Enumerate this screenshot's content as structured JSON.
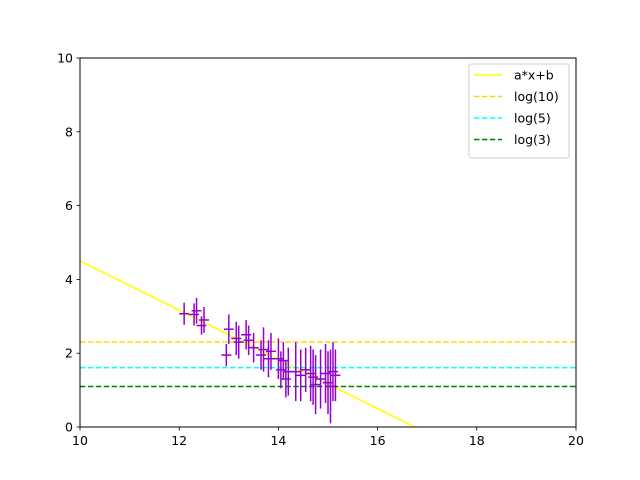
{
  "chart_data": {
    "type": "scatter",
    "title": "",
    "xlabel": "",
    "ylabel": "",
    "xlim": [
      10,
      20
    ],
    "ylim": [
      0,
      10
    ],
    "xticks": [
      "10",
      "12",
      "14",
      "16",
      "18",
      "20"
    ],
    "yticks": [
      "0",
      "2",
      "4",
      "6",
      "8",
      "10"
    ],
    "grid": false,
    "legend_position": "top-right",
    "series": [
      {
        "name": "a*x+b",
        "kind": "line",
        "color": "#ffff00",
        "style": "solid",
        "x": [
          10,
          16.75
        ],
        "y": [
          4.5,
          0
        ]
      },
      {
        "name": "log(10)",
        "kind": "hline",
        "color": "#ffd700",
        "style": "dashed",
        "y": 2.3026
      },
      {
        "name": "log(5)",
        "kind": "hline",
        "color": "#00ffff",
        "style": "dashed",
        "y": 1.6094
      },
      {
        "name": "log(3)",
        "kind": "hline",
        "color": "#008000",
        "style": "dashed",
        "y": 1.0986
      }
    ],
    "errorbar_series": {
      "color": "#9400d3",
      "points": [
        {
          "x": 12.1,
          "y": 3.07,
          "err": 0.3
        },
        {
          "x": 12.3,
          "y": 3.05,
          "err": 0.3
        },
        {
          "x": 12.35,
          "y": 3.15,
          "err": 0.35
        },
        {
          "x": 12.45,
          "y": 2.75,
          "err": 0.25
        },
        {
          "x": 12.5,
          "y": 2.9,
          "err": 0.35
        },
        {
          "x": 12.95,
          "y": 1.95,
          "err": 0.3
        },
        {
          "x": 13.0,
          "y": 2.65,
          "err": 0.4
        },
        {
          "x": 13.15,
          "y": 2.4,
          "err": 0.45
        },
        {
          "x": 13.2,
          "y": 2.3,
          "err": 0.45
        },
        {
          "x": 13.35,
          "y": 2.5,
          "err": 0.4
        },
        {
          "x": 13.4,
          "y": 2.35,
          "err": 0.4
        },
        {
          "x": 13.5,
          "y": 2.15,
          "err": 0.4
        },
        {
          "x": 13.65,
          "y": 1.95,
          "err": 0.4
        },
        {
          "x": 13.7,
          "y": 2.1,
          "err": 0.6
        },
        {
          "x": 13.8,
          "y": 1.85,
          "err": 0.5
        },
        {
          "x": 13.85,
          "y": 2.05,
          "err": 0.5
        },
        {
          "x": 14.0,
          "y": 1.85,
          "err": 0.55
        },
        {
          "x": 14.05,
          "y": 1.55,
          "err": 0.5
        },
        {
          "x": 14.1,
          "y": 1.8,
          "err": 0.5
        },
        {
          "x": 14.15,
          "y": 1.3,
          "err": 0.5
        },
        {
          "x": 14.2,
          "y": 1.5,
          "err": 0.65
        },
        {
          "x": 14.35,
          "y": 1.5,
          "err": 0.8
        },
        {
          "x": 14.45,
          "y": 1.4,
          "err": 0.7
        },
        {
          "x": 14.55,
          "y": 1.55,
          "err": 0.6
        },
        {
          "x": 14.65,
          "y": 1.45,
          "err": 0.75
        },
        {
          "x": 14.7,
          "y": 1.35,
          "err": 0.75
        },
        {
          "x": 14.75,
          "y": 1.15,
          "err": 0.8
        },
        {
          "x": 14.85,
          "y": 1.3,
          "err": 0.8
        },
        {
          "x": 14.95,
          "y": 1.45,
          "err": 0.8
        },
        {
          "x": 15.0,
          "y": 1.2,
          "err": 0.85
        },
        {
          "x": 15.05,
          "y": 1.1,
          "err": 1.0
        },
        {
          "x": 15.1,
          "y": 1.5,
          "err": 0.8
        },
        {
          "x": 15.15,
          "y": 1.4,
          "err": 0.7
        }
      ]
    }
  }
}
